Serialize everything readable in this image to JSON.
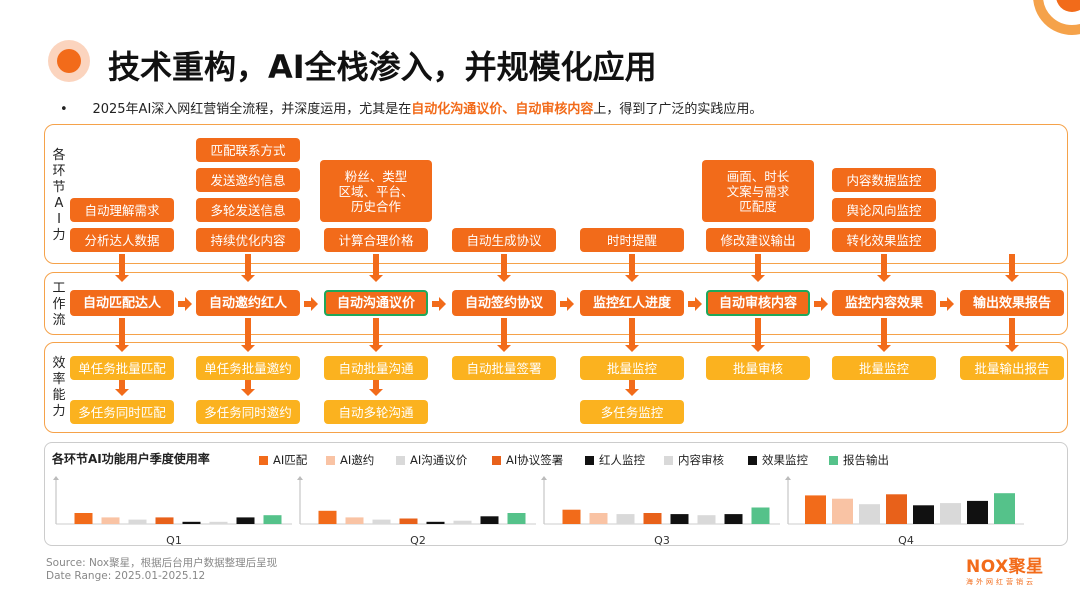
{
  "title": "技术重构，AI全栈渗入，并规模化应用",
  "bullet": {
    "prefix": "2025年AI深入网红营销全流程，并深度运用，尤其是在",
    "hl1": "自动化沟通议价",
    "sep": "、",
    "hl2": "自动审核内容",
    "suffix": "上，得到了广泛的实践应用。"
  },
  "row_labels": {
    "ai": "各环节AI力",
    "workflow": "工作流",
    "efficiency": "效率能力"
  },
  "columns": [
    {
      "ai_items": [
        "自动理解需求",
        "分析达人数据"
      ],
      "workflow": "自动匹配达人",
      "highlight": false,
      "efficiency": [
        "单任务批量匹配",
        "多任务同时匹配"
      ]
    },
    {
      "ai_items": [
        "匹配联系方式",
        "发送邀约信息",
        "多轮发送信息",
        "持续优化内容"
      ],
      "workflow": "自动邀约红人",
      "highlight": false,
      "efficiency": [
        "单任务批量邀约",
        "多任务同时邀约"
      ]
    },
    {
      "ai_items": [
        "粉丝、类型\n区域、平台、\n历史合作",
        "计算合理价格"
      ],
      "workflow": "自动沟通议价",
      "highlight": true,
      "efficiency": [
        "自动批量沟通",
        "自动多轮沟通"
      ]
    },
    {
      "ai_items": [
        "自动生成协议"
      ],
      "workflow": "自动签约协议",
      "highlight": false,
      "efficiency": [
        "自动批量签署"
      ]
    },
    {
      "ai_items": [
        "时时提醒"
      ],
      "workflow": "监控红人进度",
      "highlight": false,
      "efficiency": [
        "批量监控",
        "多任务监控"
      ]
    },
    {
      "ai_items": [
        "画面、时长\n文案与需求\n匹配度",
        "修改建议输出"
      ],
      "workflow": "自动审核内容",
      "highlight": true,
      "efficiency": [
        "批量审核"
      ]
    },
    {
      "ai_items": [
        "内容数据监控",
        "舆论风向监控",
        "转化效果监控"
      ],
      "workflow": "监控内容效果",
      "highlight": false,
      "efficiency": [
        "批量监控"
      ]
    },
    {
      "ai_items": [],
      "workflow": "输出效果报告",
      "highlight": false,
      "efficiency": [
        "批量输出报告"
      ]
    }
  ],
  "chart_data": {
    "type": "bar",
    "title": "各环节AI功能用户季度使用率",
    "categories": [
      "Q1",
      "Q2",
      "Q3",
      "Q4"
    ],
    "series": [
      {
        "name": "AI匹配",
        "color": "#f26b1a",
        "values": [
          10,
          12,
          13,
          26
        ]
      },
      {
        "name": "AI邀约",
        "color": "#f9c3a4",
        "values": [
          6,
          6,
          10,
          23
        ]
      },
      {
        "name": "AI沟通议价",
        "color": "#d9d9d9",
        "values": [
          4,
          4,
          9,
          18
        ]
      },
      {
        "name": "AI协议签署",
        "color": "#e8611a",
        "values": [
          6,
          5,
          10,
          27
        ]
      },
      {
        "name": "红人监控",
        "color": "#111111",
        "values": [
          2,
          2,
          9,
          17
        ]
      },
      {
        "name": "内容审核",
        "color": "#d9d9d9",
        "values": [
          2,
          3,
          8,
          19
        ]
      },
      {
        "name": "效果监控",
        "color": "#111111",
        "values": [
          6,
          7,
          9,
          21
        ]
      },
      {
        "name": "报告输出",
        "color": "#55c28a",
        "values": [
          8,
          10,
          15,
          28
        ]
      }
    ],
    "ylim": [
      0,
      40
    ]
  },
  "source": {
    "line1": "Source:    Nox聚星，根据后台用户数据整理后呈现",
    "line2": "Date Range:   2025.01-2025.12"
  },
  "logo": {
    "brand": "NOX聚星",
    "tagline": "海外网红营销云"
  },
  "colors": {
    "accent": "#f26b1a",
    "efficiency": "#fbb21f",
    "highlight_border": "#1fa85b"
  }
}
